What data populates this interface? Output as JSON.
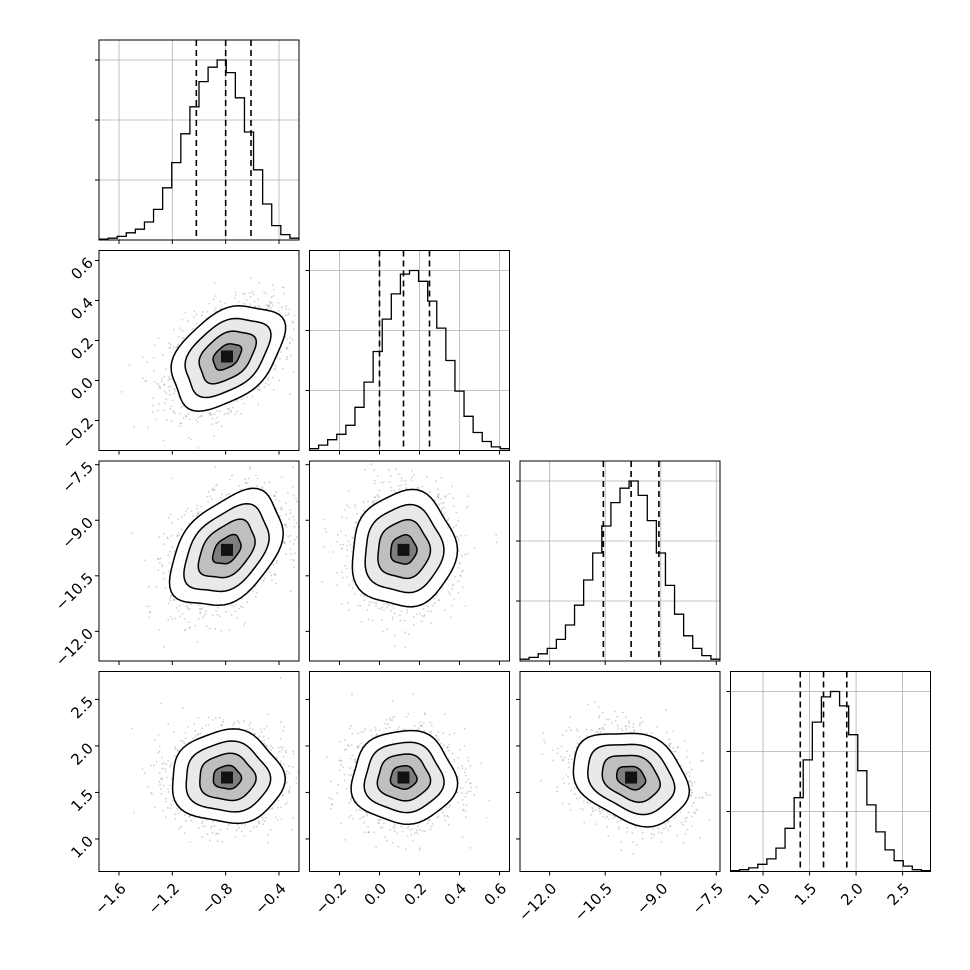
{
  "chart_data": {
    "type": "corner",
    "grid": true,
    "parameters": [
      {
        "range": [
          -1.75,
          -0.25
        ],
        "ticks": [
          -1.6,
          -1.2,
          -0.8,
          -0.4
        ],
        "tick_labels": [
          "−1.6",
          "−1.2",
          "−0.8",
          "−0.4"
        ],
        "quantiles": [
          -1.02,
          -0.8,
          -0.61
        ],
        "hist": [
          0.5,
          1,
          2,
          4,
          6,
          10,
          17,
          29,
          43,
          59,
          74,
          88,
          96,
          100,
          93,
          79,
          60,
          39,
          20,
          8,
          3,
          1
        ]
      },
      {
        "range": [
          -0.35,
          0.65
        ],
        "ticks": [
          -0.2,
          0.0,
          0.2,
          0.4,
          0.6
        ],
        "tick_labels": [
          "−0.2",
          "0.0",
          "0.2",
          "0.4",
          "0.6"
        ],
        "quantiles": [
          0.0,
          0.12,
          0.25
        ],
        "hist": [
          1,
          3,
          6,
          9,
          14,
          24,
          38,
          55,
          73,
          87,
          98,
          100,
          94,
          83,
          68,
          50,
          33,
          19,
          10,
          5,
          2,
          1
        ]
      },
      {
        "range": [
          -12.8,
          -7.4
        ],
        "ticks": [
          -12.0,
          -10.5,
          -9.0,
          -7.5
        ],
        "tick_labels": [
          "−12.0",
          "−10.5",
          "−9.0",
          "−7.5"
        ],
        "quantiles": [
          -10.55,
          -9.8,
          -9.05
        ],
        "hist": [
          1,
          2,
          4,
          7,
          12,
          20,
          31,
          45,
          60,
          75,
          88,
          96,
          100,
          92,
          78,
          60,
          42,
          26,
          14,
          7,
          3,
          1
        ]
      },
      {
        "range": [
          0.65,
          2.8
        ],
        "ticks": [
          1.0,
          1.5,
          2.0,
          2.5
        ],
        "tick_labels": [
          "1.0",
          "1.5",
          "2.0",
          "2.5"
        ],
        "quantiles": [
          1.4,
          1.65,
          1.9
        ],
        "hist": [
          0.5,
          1,
          2,
          4,
          7,
          13,
          24,
          41,
          62,
          83,
          97,
          100,
          92,
          76,
          56,
          37,
          22,
          12,
          6,
          3,
          1,
          0.5
        ]
      }
    ],
    "y_tick_rows": [
      {
        "row": 1,
        "ticks": [
          -0.2,
          0.0,
          0.2,
          0.4,
          0.6
        ],
        "tick_labels": [
          "−0.2",
          "0.0",
          "0.2",
          "0.4",
          "0.6"
        ]
      },
      {
        "row": 2,
        "ticks": [
          -12.0,
          -10.5,
          -9.0,
          -7.5
        ],
        "tick_labels": [
          "−12.0",
          "−10.5",
          "−9.0",
          "−7.5"
        ]
      },
      {
        "row": 3,
        "ticks": [
          1.0,
          1.5,
          2.0,
          2.5
        ],
        "tick_labels": [
          "1.0",
          "1.5",
          "2.0",
          "2.5"
        ]
      }
    ],
    "correlations": [
      [
        1.0,
        0.4,
        0.4,
        0.0
      ],
      [
        0.4,
        1.0,
        0.05,
        0.0
      ],
      [
        0.4,
        0.05,
        1.0,
        -0.25
      ],
      [
        0.0,
        0.0,
        -0.25,
        1.0
      ]
    ],
    "stds": [
      0.21,
      0.13,
      0.78,
      0.25
    ],
    "means": [
      -0.79,
      0.12,
      -9.8,
      1.66
    ],
    "contour_levels_sigma": [
      0.5,
      1.0,
      1.5,
      2.0
    ],
    "colors": {
      "hist_line": "#000000",
      "grid": "#b0b0b0",
      "scatter": "#9a9a9a"
    }
  }
}
